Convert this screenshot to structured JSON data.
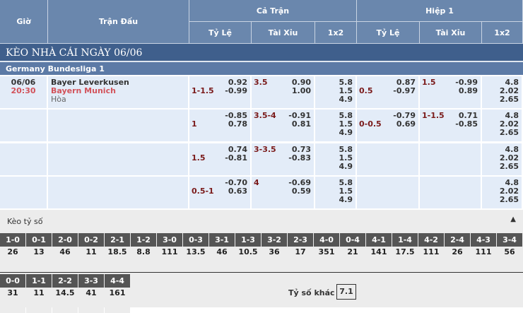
{
  "header": {
    "gio": "Giờ",
    "tran_dau": "Trận Đấu",
    "ca_tran": "Cả Trận",
    "hiep1": "Hiệp 1",
    "ty_le": "Tỷ Lệ",
    "tai_xiu": "Tài Xỉu",
    "x12": "1x2"
  },
  "title": "KÈO NHÀ CÁI NGÀY 06/06",
  "league": "Germany Bundesliga 1",
  "match": {
    "date": "06/06",
    "time": "20:30",
    "home": "Bayer Leverkusen",
    "away": "Bayern Munich",
    "draw": "Hòa"
  },
  "rows": [
    {
      "ft_hc": "1-1.5",
      "ft_hc_o": [
        "0.92",
        "-0.99"
      ],
      "ft_ou": "3.5",
      "ft_ou_o": [
        "0.90",
        "1.00"
      ],
      "ft_1x2": [
        "5.8",
        "1.5",
        "4.9"
      ],
      "h1_hc": "0.5",
      "h1_hc_o": [
        "0.87",
        "-0.97"
      ],
      "h1_ou": "1.5",
      "h1_ou_o": [
        "-0.99",
        "0.89"
      ],
      "h1_1x2": [
        "4.8",
        "2.02",
        "2.65"
      ]
    },
    {
      "ft_hc": "1",
      "ft_hc_o": [
        "-0.85",
        "0.78"
      ],
      "ft_ou": "3.5-4",
      "ft_ou_o": [
        "-0.91",
        "0.81"
      ],
      "ft_1x2": [
        "5.8",
        "1.5",
        "4.9"
      ],
      "h1_hc": "0-0.5",
      "h1_hc_o": [
        "-0.79",
        "0.69"
      ],
      "h1_ou": "1-1.5",
      "h1_ou_o": [
        "0.71",
        "-0.85"
      ],
      "h1_1x2": [
        "4.8",
        "2.02",
        "2.65"
      ]
    },
    {
      "ft_hc": "1.5",
      "ft_hc_o": [
        "0.74",
        "-0.81"
      ],
      "ft_ou": "3-3.5",
      "ft_ou_o": [
        "0.73",
        "-0.83"
      ],
      "ft_1x2": [
        "5.8",
        "1.5",
        "4.9"
      ],
      "h1_hc": "",
      "h1_hc_o": [
        "",
        ""
      ],
      "h1_ou": "",
      "h1_ou_o": [
        "",
        ""
      ],
      "h1_1x2": [
        "4.8",
        "2.02",
        "2.65"
      ]
    },
    {
      "ft_hc": "0.5-1",
      "ft_hc_o": [
        "-0.70",
        "0.63"
      ],
      "ft_ou": "4",
      "ft_ou_o": [
        "-0.69",
        "0.59"
      ],
      "ft_1x2": [
        "5.8",
        "1.5",
        "4.9"
      ],
      "h1_hc": "",
      "h1_hc_o": [
        "",
        ""
      ],
      "h1_ou": "",
      "h1_ou_o": [
        "",
        ""
      ],
      "h1_1x2": [
        "4.8",
        "2.02",
        "2.65"
      ]
    }
  ],
  "score": {
    "title": "Kèo tỷ số",
    "collapse_icon": "triangle-up-icon",
    "row1": [
      [
        "1-0",
        "26"
      ],
      [
        "0-1",
        "13"
      ],
      [
        "2-0",
        "46"
      ],
      [
        "0-2",
        "11"
      ],
      [
        "2-1",
        "18.5"
      ],
      [
        "1-2",
        "8.8"
      ],
      [
        "3-0",
        "111"
      ],
      [
        "0-3",
        "13.5"
      ],
      [
        "3-1",
        "46"
      ],
      [
        "1-3",
        "10.5"
      ],
      [
        "3-2",
        "36"
      ],
      [
        "2-3",
        "17"
      ],
      [
        "4-0",
        "351"
      ],
      [
        "0-4",
        "21"
      ],
      [
        "4-1",
        "141"
      ],
      [
        "1-4",
        "17.5"
      ],
      [
        "4-2",
        "111"
      ],
      [
        "2-4",
        "26"
      ],
      [
        "4-3",
        "111"
      ],
      [
        "3-4",
        "56"
      ]
    ],
    "row2": [
      [
        "0-0",
        "31"
      ],
      [
        "1-1",
        "11"
      ],
      [
        "2-2",
        "14.5"
      ],
      [
        "3-3",
        "41"
      ],
      [
        "4-4",
        "161"
      ]
    ],
    "other_label": "Tỷ số khác",
    "other_value": "7.1"
  }
}
